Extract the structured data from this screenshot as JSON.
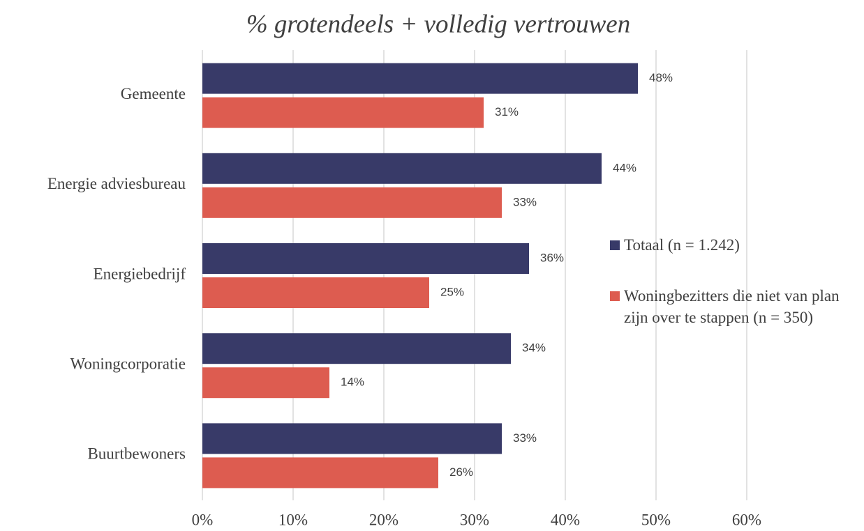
{
  "chart_data": {
    "type": "hbar",
    "title": "% grotendeels  + volledig vertrouwen",
    "categories": [
      "Gemeente",
      "Energie adviesbureau",
      "Energiebedrijf",
      "Woningcorporatie",
      "Buurtbewoners"
    ],
    "series": [
      {
        "name": "Totaal (n = 1.242)",
        "color": "#383a68",
        "values": [
          48,
          44,
          36,
          34,
          33
        ],
        "value_labels": [
          "48%",
          "44%",
          "36%",
          "34%",
          "33%"
        ]
      },
      {
        "name": "Woningbezitters die niet van plan zijn over te stappen (n = 350)",
        "color": "#dd5c50",
        "values": [
          31,
          33,
          25,
          14,
          26
        ],
        "value_labels": [
          "31%",
          "33%",
          "25%",
          "14%",
          "26%"
        ]
      }
    ],
    "xlim": [
      0,
      60
    ],
    "xticks": [
      {
        "value": 0,
        "label": "0%"
      },
      {
        "value": 10,
        "label": "10%"
      },
      {
        "value": 20,
        "label": "20%"
      },
      {
        "value": 30,
        "label": "30%"
      },
      {
        "value": 40,
        "label": "40%"
      },
      {
        "value": 50,
        "label": "50%"
      },
      {
        "value": 60,
        "label": "60%"
      }
    ],
    "grid": true,
    "legend": "right"
  }
}
